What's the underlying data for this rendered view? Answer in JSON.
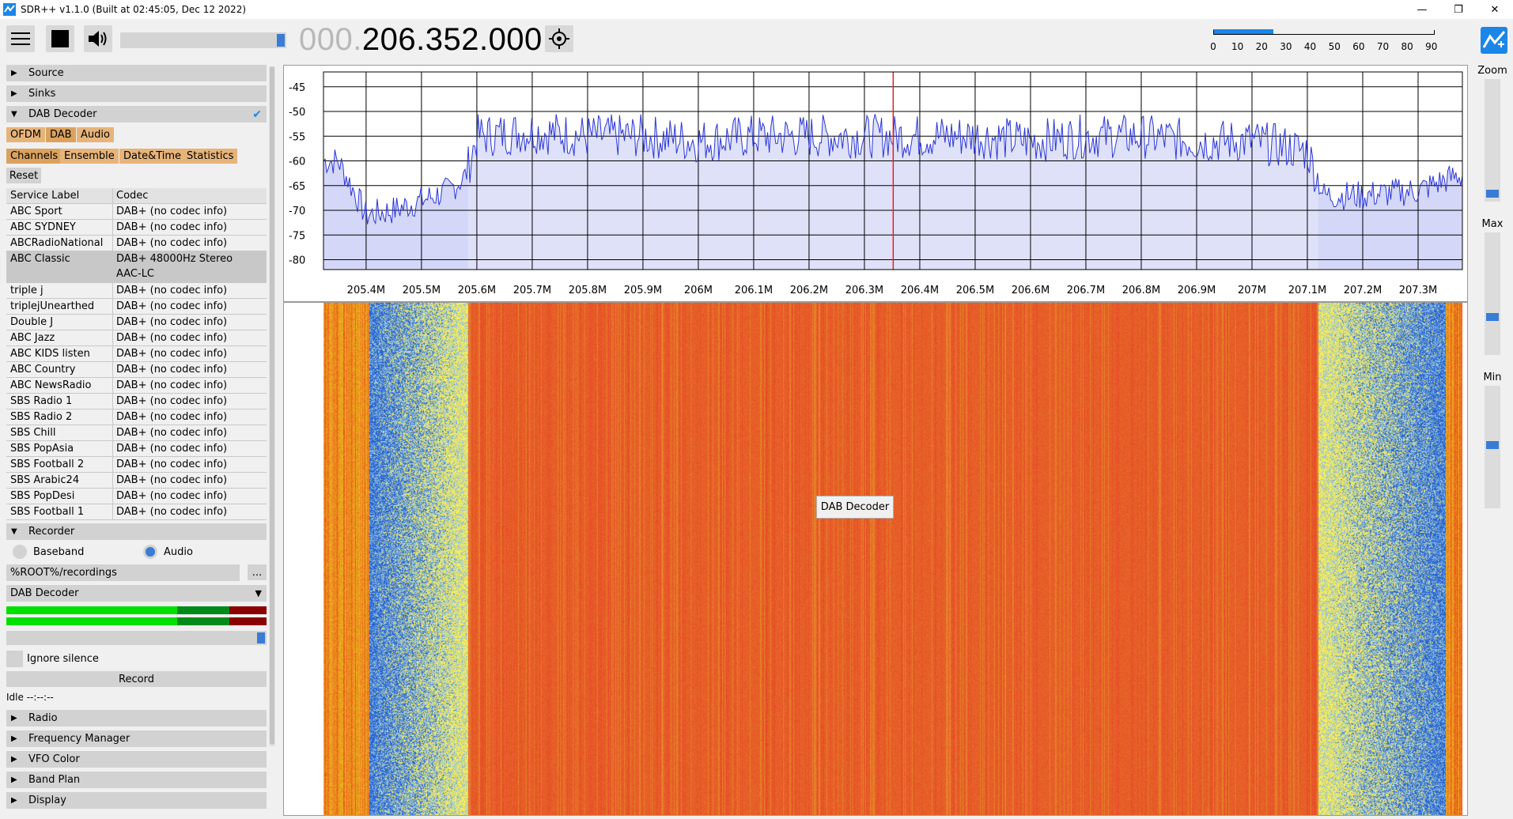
{
  "window": {
    "title": "SDR++ v1.1.0 (Built at 02:45:05, Dec 12 2022)",
    "minimize": "—",
    "restore": "❐",
    "close": "✕"
  },
  "toolbar": {
    "freq_dim": "000.",
    "freq_main": "206.352.000",
    "snr_ticks": [
      "0",
      "10",
      "20",
      "30",
      "40",
      "50",
      "60",
      "70",
      "80",
      "90"
    ],
    "snr_level_fraction": 0.27
  },
  "sidebar": {
    "source": "Source",
    "sinks": "Sinks",
    "dab_decoder": "DAB Decoder",
    "tabs_row1": [
      "OFDM",
      "DAB",
      "Audio"
    ],
    "tabs_row2": [
      "Channels",
      "Ensemble",
      "Date&Time",
      "Statistics"
    ],
    "reset": "Reset",
    "table_headers": [
      "Service Label",
      "Codec"
    ],
    "services": [
      {
        "label": "ABC Sport",
        "codec": "DAB+ (no codec info)"
      },
      {
        "label": "ABC SYDNEY",
        "codec": "DAB+ (no codec info)"
      },
      {
        "label": "ABCRadioNational",
        "codec": "DAB+ (no codec info)"
      },
      {
        "label": "ABC Classic",
        "codec": "DAB+ 48000Hz Stereo",
        "codec2": "AAC-LC"
      },
      {
        "label": "triple j",
        "codec": "DAB+ (no codec info)"
      },
      {
        "label": "triplejUnearthed",
        "codec": "DAB+ (no codec info)"
      },
      {
        "label": "Double J",
        "codec": "DAB+ (no codec info)"
      },
      {
        "label": "ABC Jazz",
        "codec": "DAB+ (no codec info)"
      },
      {
        "label": "ABC KIDS listen",
        "codec": "DAB+ (no codec info)"
      },
      {
        "label": "ABC Country",
        "codec": "DAB+ (no codec info)"
      },
      {
        "label": "ABC NewsRadio",
        "codec": "DAB+ (no codec info)"
      },
      {
        "label": "SBS Radio 1",
        "codec": "DAB+ (no codec info)"
      },
      {
        "label": "SBS Radio 2",
        "codec": "DAB+ (no codec info)"
      },
      {
        "label": "SBS Chill",
        "codec": "DAB+ (no codec info)"
      },
      {
        "label": "SBS PopAsia",
        "codec": "DAB+ (no codec info)"
      },
      {
        "label": "SBS Football 2",
        "codec": "DAB+ (no codec info)"
      },
      {
        "label": "SBS Arabic24",
        "codec": "DAB+ (no codec info)"
      },
      {
        "label": "SBS PopDesi",
        "codec": "DAB+ (no codec info)"
      },
      {
        "label": "SBS Football 1",
        "codec": "DAB+ (no codec info)"
      }
    ],
    "recorder": "Recorder",
    "baseband": "Baseband",
    "audio": "Audio",
    "path": "%ROOT%/recordings",
    "browse": "...",
    "stream_select": "DAB Decoder",
    "ignore_silence": "Ignore silence",
    "record": "Record",
    "status": "Idle --:--:--",
    "radio": "Radio",
    "freq_manager": "Frequency Manager",
    "vfo_color": "VFO Color",
    "band_plan": "Band Plan",
    "display": "Display"
  },
  "spectrum": {
    "y_ticks": [
      "-45",
      "-50",
      "-55",
      "-60",
      "-65",
      "-70",
      "-75",
      "-80"
    ],
    "x_ticks": [
      "205.4M",
      "205.5M",
      "205.6M",
      "205.7M",
      "205.8M",
      "205.9M",
      "206M",
      "206.1M",
      "206.2M",
      "206.3M",
      "206.4M",
      "206.5M",
      "206.6M",
      "206.7M",
      "206.8M",
      "206.9M",
      "207M",
      "207.1M",
      "207.2M",
      "207.3M"
    ],
    "vfo_label": "DAB Decoder"
  },
  "right": {
    "zoom": "Zoom",
    "max": "Max",
    "min": "Min"
  },
  "chart_data": {
    "type": "line",
    "x_range_mhz": [
      205.323,
      207.38
    ],
    "ylim": [
      -82,
      -42
    ],
    "band_start_mhz": 205.584,
    "band_end_mhz": 207.12,
    "vfo_mhz": 206.352,
    "x_mhz": [
      205.35,
      205.4,
      205.45,
      205.5,
      205.55,
      205.58,
      205.6,
      205.7,
      205.8,
      205.9,
      206.0,
      206.1,
      206.2,
      206.3,
      206.4,
      206.5,
      206.6,
      206.7,
      206.8,
      206.9,
      207.0,
      207.1,
      207.13,
      207.2,
      207.3,
      207.37
    ],
    "y_db": [
      -60,
      -71,
      -70,
      -68,
      -66,
      -63,
      -55,
      -54,
      -55,
      -55,
      -56,
      -55,
      -55,
      -55,
      -55,
      -55,
      -56,
      -55,
      -55,
      -56,
      -56,
      -58,
      -67,
      -67,
      -66,
      -63
    ]
  },
  "colors": {
    "accent": "#1a86e8",
    "spectrum_fill": "#d4d7f7",
    "spectrum_line": "#2a36d8",
    "vfo_line": "#e02020",
    "waterfall_signal": "#e8322c",
    "waterfall_noise_blue": "#2a6fd6",
    "waterfall_noise_yellow": "#f2e85a"
  }
}
